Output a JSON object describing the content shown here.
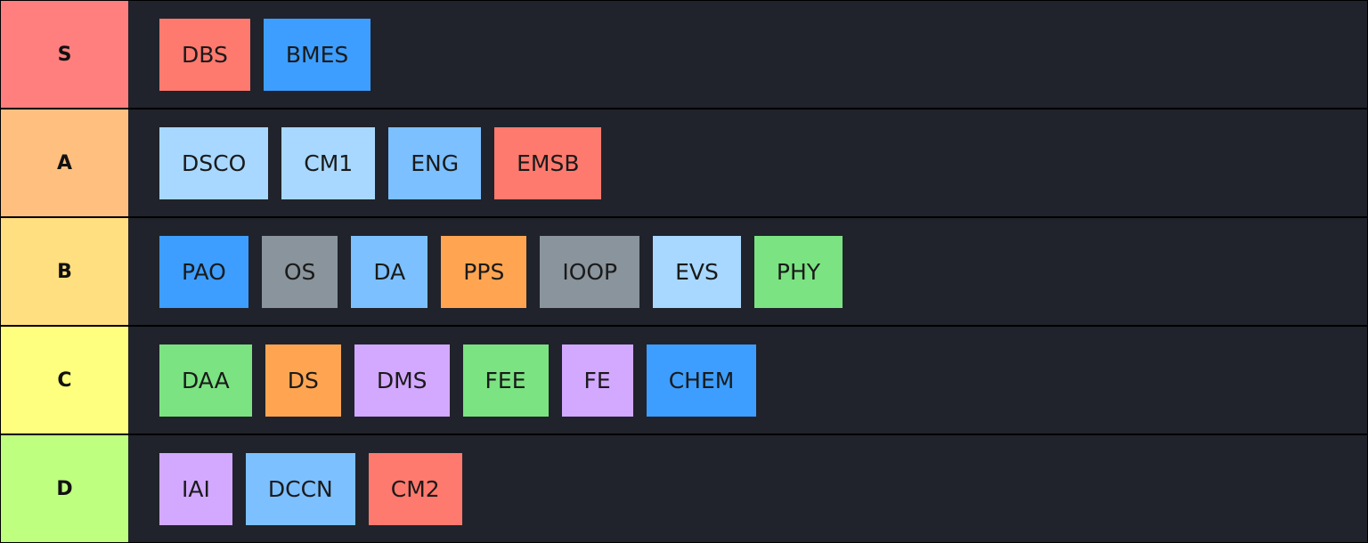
{
  "tiers": [
    {
      "label": "S",
      "color": "#ff7f7f",
      "items": [
        {
          "label": "DBS",
          "color": "#ff7a6e"
        },
        {
          "label": "BMES",
          "color": "#3d9eff"
        }
      ]
    },
    {
      "label": "A",
      "color": "#ffbf7f",
      "items": [
        {
          "label": "DSCO",
          "color": "#a8d8ff"
        },
        {
          "label": "CM1",
          "color": "#a8d8ff"
        },
        {
          "label": "ENG",
          "color": "#7cc0ff"
        },
        {
          "label": "EMSB",
          "color": "#ff7a6e"
        }
      ]
    },
    {
      "label": "B",
      "color": "#ffdf7f",
      "items": [
        {
          "label": "PAO",
          "color": "#3d9eff"
        },
        {
          "label": "OS",
          "color": "#8a949c"
        },
        {
          "label": "DA",
          "color": "#7cc0ff"
        },
        {
          "label": "PPS",
          "color": "#ffa552"
        },
        {
          "label": "IOOP",
          "color": "#8a949c"
        },
        {
          "label": "EVS",
          "color": "#a8d8ff"
        },
        {
          "label": "PHY",
          "color": "#7be382"
        }
      ]
    },
    {
      "label": "C",
      "color": "#ffff7f",
      "items": [
        {
          "label": "DAA",
          "color": "#7be382"
        },
        {
          "label": "DS",
          "color": "#ffa552"
        },
        {
          "label": "DMS",
          "color": "#d3a8ff"
        },
        {
          "label": "FEE",
          "color": "#7be382"
        },
        {
          "label": "FE",
          "color": "#d3a8ff"
        },
        {
          "label": "CHEM",
          "color": "#3d9eff"
        }
      ]
    },
    {
      "label": "D",
      "color": "#bfff7f",
      "items": [
        {
          "label": "IAI",
          "color": "#d3a8ff"
        },
        {
          "label": "DCCN",
          "color": "#7cc0ff"
        },
        {
          "label": "CM2",
          "color": "#ff7a6e"
        }
      ]
    }
  ]
}
